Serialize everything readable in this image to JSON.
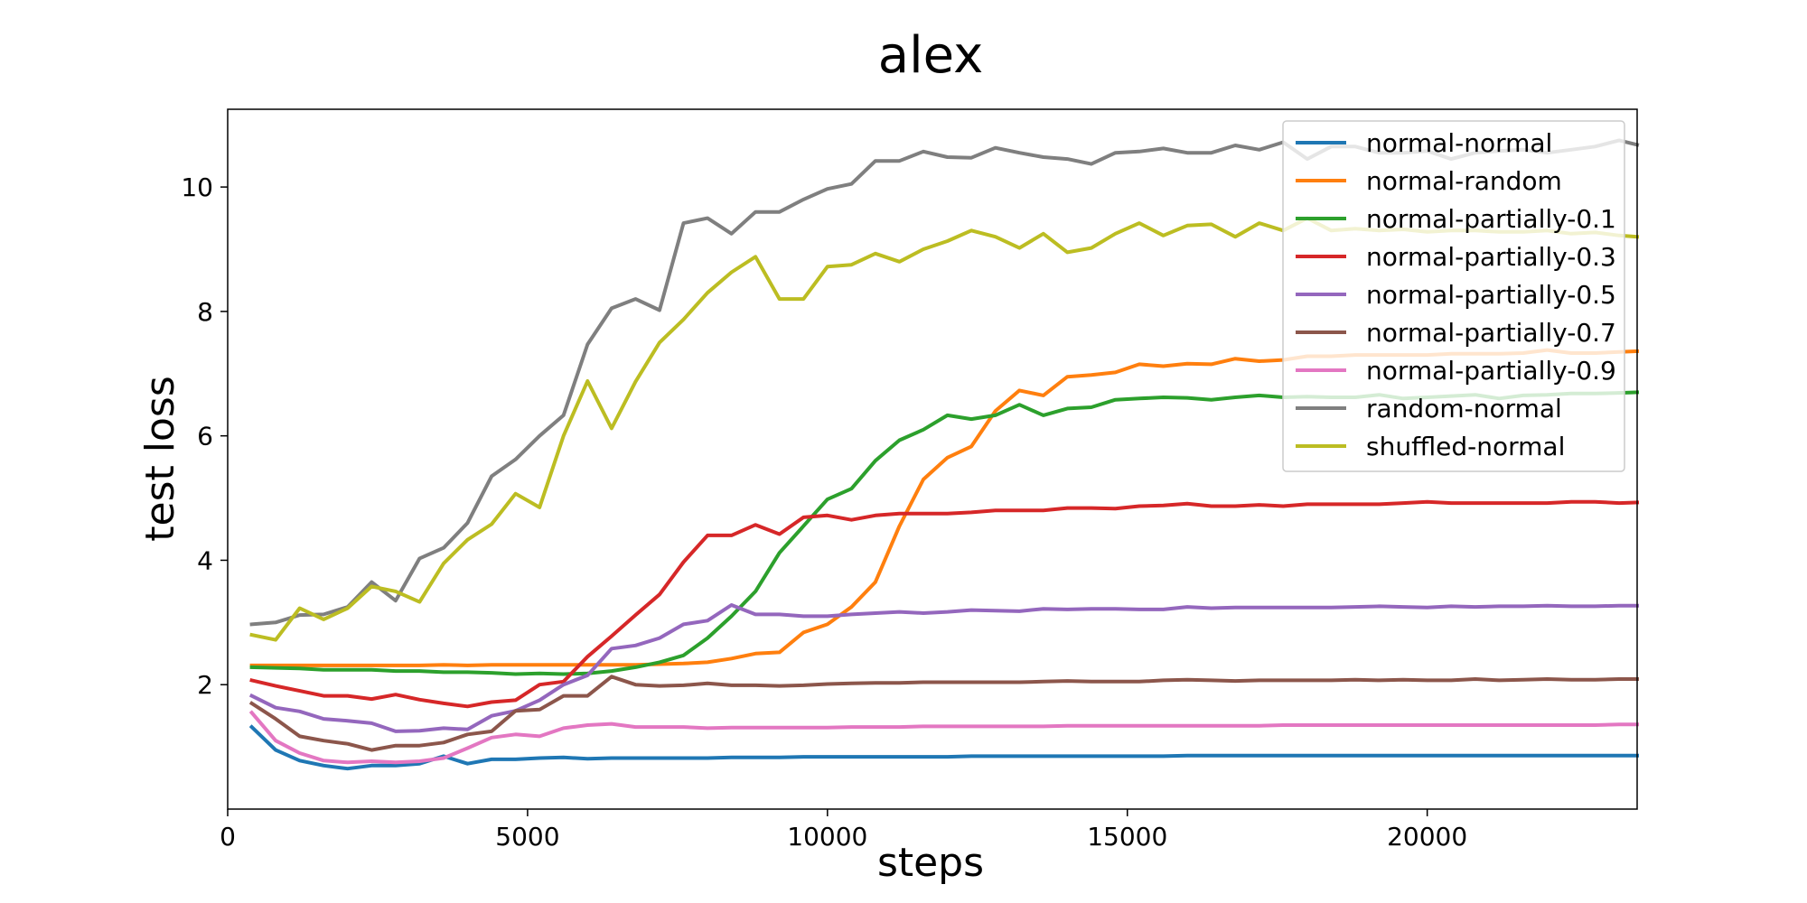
{
  "chart_data": {
    "type": "line",
    "title": "alex",
    "xlabel": "steps",
    "ylabel": "test loss",
    "xlim": [
      0,
      23500
    ],
    "ylim": [
      0.0,
      11.25
    ],
    "xticks": [
      0,
      5000,
      10000,
      15000,
      20000
    ],
    "yticks": [
      2,
      4,
      6,
      8,
      10
    ],
    "grid": false,
    "legend_position": "top-right",
    "x": [
      400,
      800,
      1200,
      1600,
      2000,
      2400,
      2800,
      3200,
      3600,
      4000,
      4400,
      4800,
      5200,
      5600,
      6000,
      6400,
      6800,
      7200,
      7600,
      8000,
      8400,
      8800,
      9200,
      9600,
      10000,
      10400,
      10800,
      11200,
      11600,
      12000,
      12400,
      12800,
      13200,
      13600,
      14000,
      14400,
      14800,
      15200,
      15600,
      16000,
      16400,
      16800,
      17200,
      17600,
      18000,
      18400,
      18800,
      19200,
      19600,
      20000,
      20400,
      20800,
      21200,
      21600,
      22000,
      22400,
      22800,
      23200,
      23500
    ],
    "series": [
      {
        "name": "normal-normal",
        "color": "#1f77b4",
        "values": [
          1.32,
          0.95,
          0.78,
          0.7,
          0.65,
          0.7,
          0.7,
          0.73,
          0.85,
          0.73,
          0.8,
          0.8,
          0.82,
          0.83,
          0.81,
          0.82,
          0.82,
          0.82,
          0.82,
          0.82,
          0.83,
          0.83,
          0.83,
          0.84,
          0.84,
          0.84,
          0.84,
          0.84,
          0.84,
          0.84,
          0.85,
          0.85,
          0.85,
          0.85,
          0.85,
          0.85,
          0.85,
          0.85,
          0.85,
          0.86,
          0.86,
          0.86,
          0.86,
          0.86,
          0.86,
          0.86,
          0.86,
          0.86,
          0.86,
          0.86,
          0.86,
          0.86,
          0.86,
          0.86,
          0.86,
          0.86,
          0.86,
          0.86,
          0.86
        ]
      },
      {
        "name": "normal-random",
        "color": "#ff7f0e",
        "values": [
          2.31,
          2.31,
          2.31,
          2.31,
          2.31,
          2.31,
          2.31,
          2.31,
          2.32,
          2.31,
          2.32,
          2.32,
          2.32,
          2.32,
          2.32,
          2.32,
          2.32,
          2.33,
          2.34,
          2.36,
          2.42,
          2.5,
          2.52,
          2.84,
          2.97,
          3.25,
          3.65,
          4.55,
          5.3,
          5.65,
          5.83,
          6.4,
          6.73,
          6.65,
          6.95,
          6.98,
          7.02,
          7.15,
          7.12,
          7.16,
          7.15,
          7.24,
          7.2,
          7.22,
          7.28,
          7.28,
          7.3,
          7.3,
          7.3,
          7.3,
          7.32,
          7.32,
          7.32,
          7.33,
          7.38,
          7.33,
          7.33,
          7.35,
          7.36
        ]
      },
      {
        "name": "normal-partially-0.1",
        "color": "#2ca02c",
        "values": [
          2.28,
          2.27,
          2.26,
          2.24,
          2.24,
          2.24,
          2.22,
          2.22,
          2.2,
          2.2,
          2.19,
          2.17,
          2.18,
          2.17,
          2.18,
          2.22,
          2.28,
          2.36,
          2.47,
          2.75,
          3.1,
          3.5,
          4.12,
          4.55,
          4.98,
          5.15,
          5.6,
          5.93,
          6.1,
          6.33,
          6.27,
          6.33,
          6.5,
          6.33,
          6.44,
          6.46,
          6.58,
          6.6,
          6.62,
          6.61,
          6.58,
          6.62,
          6.65,
          6.62,
          6.63,
          6.62,
          6.62,
          6.66,
          6.6,
          6.62,
          6.64,
          6.66,
          6.6,
          6.65,
          6.66,
          6.68,
          6.68,
          6.69,
          6.7
        ]
      },
      {
        "name": "normal-partially-0.3",
        "color": "#d62728",
        "values": [
          2.07,
          1.98,
          1.9,
          1.82,
          1.82,
          1.77,
          1.84,
          1.76,
          1.7,
          1.65,
          1.72,
          1.75,
          2.0,
          2.05,
          2.45,
          2.78,
          3.12,
          3.45,
          3.97,
          4.4,
          4.4,
          4.57,
          4.42,
          4.69,
          4.72,
          4.65,
          4.72,
          4.75,
          4.75,
          4.75,
          4.77,
          4.8,
          4.8,
          4.8,
          4.84,
          4.84,
          4.83,
          4.87,
          4.88,
          4.91,
          4.87,
          4.87,
          4.89,
          4.87,
          4.9,
          4.9,
          4.9,
          4.9,
          4.92,
          4.94,
          4.92,
          4.92,
          4.92,
          4.92,
          4.92,
          4.94,
          4.94,
          4.92,
          4.93
        ]
      },
      {
        "name": "normal-partially-0.5",
        "color": "#9467bd",
        "values": [
          1.82,
          1.63,
          1.57,
          1.45,
          1.42,
          1.38,
          1.25,
          1.26,
          1.3,
          1.28,
          1.5,
          1.58,
          1.75,
          2.0,
          2.15,
          2.58,
          2.63,
          2.75,
          2.97,
          3.03,
          3.28,
          3.13,
          3.13,
          3.1,
          3.1,
          3.13,
          3.15,
          3.17,
          3.15,
          3.17,
          3.2,
          3.19,
          3.18,
          3.22,
          3.21,
          3.22,
          3.22,
          3.21,
          3.21,
          3.25,
          3.23,
          3.24,
          3.24,
          3.24,
          3.24,
          3.24,
          3.25,
          3.26,
          3.25,
          3.24,
          3.26,
          3.25,
          3.26,
          3.26,
          3.27,
          3.26,
          3.26,
          3.27,
          3.27
        ]
      },
      {
        "name": "normal-partially-0.7",
        "color": "#8c564b",
        "values": [
          1.7,
          1.45,
          1.17,
          1.1,
          1.05,
          0.95,
          1.02,
          1.02,
          1.07,
          1.2,
          1.25,
          1.58,
          1.6,
          1.82,
          1.82,
          2.13,
          2.0,
          1.98,
          1.99,
          2.02,
          1.99,
          1.99,
          1.98,
          1.99,
          2.01,
          2.02,
          2.03,
          2.03,
          2.04,
          2.04,
          2.04,
          2.04,
          2.04,
          2.05,
          2.06,
          2.05,
          2.05,
          2.05,
          2.07,
          2.08,
          2.07,
          2.06,
          2.07,
          2.07,
          2.07,
          2.07,
          2.08,
          2.07,
          2.08,
          2.07,
          2.07,
          2.09,
          2.07,
          2.08,
          2.09,
          2.08,
          2.08,
          2.09,
          2.09
        ]
      },
      {
        "name": "normal-partially-0.9",
        "color": "#e377c2",
        "values": [
          1.55,
          1.1,
          0.9,
          0.78,
          0.75,
          0.77,
          0.75,
          0.77,
          0.82,
          0.98,
          1.15,
          1.2,
          1.17,
          1.3,
          1.35,
          1.37,
          1.32,
          1.32,
          1.32,
          1.3,
          1.31,
          1.31,
          1.31,
          1.31,
          1.31,
          1.32,
          1.32,
          1.32,
          1.33,
          1.33,
          1.33,
          1.33,
          1.33,
          1.33,
          1.34,
          1.34,
          1.34,
          1.34,
          1.34,
          1.34,
          1.34,
          1.34,
          1.34,
          1.35,
          1.35,
          1.35,
          1.35,
          1.35,
          1.35,
          1.35,
          1.35,
          1.35,
          1.35,
          1.35,
          1.35,
          1.35,
          1.35,
          1.36,
          1.36
        ]
      },
      {
        "name": "random-normal",
        "color": "#7f7f7f",
        "values": [
          2.97,
          3.0,
          3.12,
          3.13,
          3.25,
          3.65,
          3.35,
          4.03,
          4.2,
          4.6,
          5.35,
          5.62,
          6.0,
          6.33,
          7.47,
          8.05,
          8.2,
          8.02,
          9.42,
          9.5,
          9.25,
          9.6,
          9.6,
          9.8,
          9.97,
          10.05,
          10.42,
          10.42,
          10.57,
          10.48,
          10.47,
          10.63,
          10.55,
          10.48,
          10.45,
          10.37,
          10.55,
          10.57,
          10.62,
          10.55,
          10.55,
          10.67,
          10.6,
          10.72,
          10.45,
          10.65,
          10.65,
          10.55,
          10.55,
          10.58,
          10.45,
          10.55,
          10.58,
          10.6,
          10.55,
          10.6,
          10.65,
          10.75,
          10.68
        ]
      },
      {
        "name": "shuffled-normal",
        "color": "#bcbd22",
        "values": [
          2.8,
          2.72,
          3.23,
          3.05,
          3.23,
          3.58,
          3.5,
          3.33,
          3.95,
          4.33,
          4.58,
          5.07,
          4.85,
          6.0,
          6.88,
          6.12,
          6.87,
          7.5,
          7.87,
          8.3,
          8.63,
          8.88,
          8.2,
          8.2,
          8.72,
          8.75,
          8.93,
          8.8,
          9.0,
          9.13,
          9.3,
          9.2,
          9.02,
          9.25,
          8.95,
          9.02,
          9.25,
          9.42,
          9.22,
          9.38,
          9.4,
          9.2,
          9.42,
          9.3,
          9.5,
          9.3,
          9.33,
          9.3,
          9.32,
          9.28,
          9.3,
          9.3,
          9.28,
          9.28,
          9.3,
          9.25,
          9.27,
          9.22,
          9.2
        ]
      }
    ]
  }
}
